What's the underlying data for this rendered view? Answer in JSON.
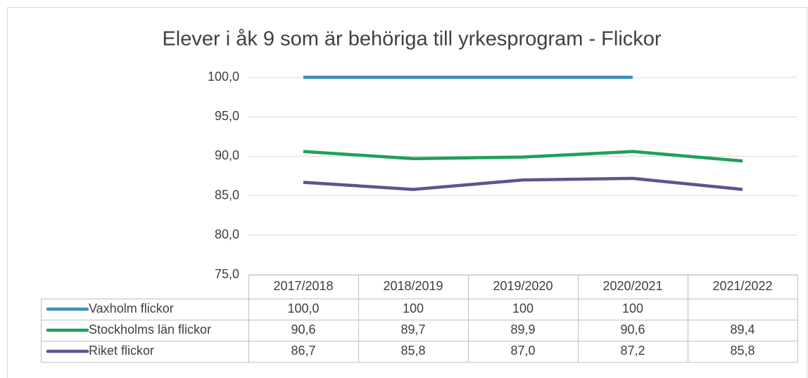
{
  "chart_data": {
    "type": "line",
    "title": "Elever i åk 9 som är behöriga till yrkesprogram - Flickor",
    "categories": [
      "2017/2018",
      "2018/2019",
      "2019/2020",
      "2020/2021",
      "2021/2022"
    ],
    "series": [
      {
        "name": "Vaxholm flickor",
        "color": "#3c8dbf",
        "values": [
          100,
          100,
          100,
          100,
          null
        ],
        "value_labels": [
          "100,0",
          "100",
          "100",
          "100",
          null
        ]
      },
      {
        "name": "Stockholms län flickor",
        "color": "#1fa05a",
        "values": [
          90.6,
          89.7,
          89.9,
          90.6,
          89.4
        ],
        "value_labels": [
          "90,6",
          "89,7",
          "89,9",
          "90,6",
          "89,4"
        ]
      },
      {
        "name": "Riket flickor",
        "color": "#5e5391",
        "values": [
          86.7,
          85.8,
          87.0,
          87.2,
          85.8
        ],
        "value_labels": [
          "86,7",
          "85,8",
          "87,0",
          "87,2",
          "85,8"
        ]
      }
    ],
    "ylim": [
      75,
      100
    ],
    "yticks": [
      {
        "value": 75,
        "label": "75,0"
      },
      {
        "value": 80,
        "label": "80,0"
      },
      {
        "value": 85,
        "label": "85,0"
      },
      {
        "value": 90,
        "label": "90,0"
      },
      {
        "value": 95,
        "label": "95,0"
      },
      {
        "value": 100,
        "label": "100,0"
      }
    ],
    "grid": true
  }
}
